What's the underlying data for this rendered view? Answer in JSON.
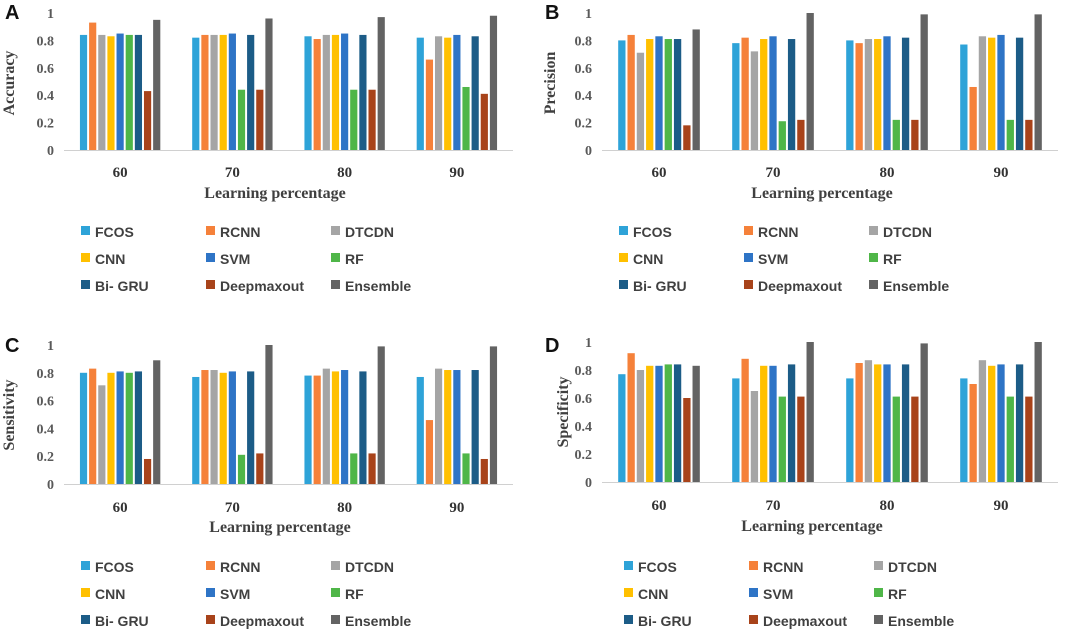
{
  "figure": {
    "panel_letters": [
      "A",
      "B",
      "C",
      "D"
    ]
  },
  "chart_data": [
    {
      "type": "bar",
      "panel": "A",
      "xlabel": "Learning percentage",
      "ylabel": "Accuracy",
      "ylim": [
        0,
        1
      ],
      "yticks": [
        "0",
        "0.2",
        "0.4",
        "0.6",
        "0.8",
        "1"
      ],
      "categories": [
        "60",
        "70",
        "80",
        "90"
      ],
      "series": [
        {
          "name": "FCOS",
          "values": [
            0.84,
            0.82,
            0.83,
            0.82
          ]
        },
        {
          "name": "RCNN",
          "values": [
            0.93,
            0.84,
            0.81,
            0.66
          ]
        },
        {
          "name": "DTCDN",
          "values": [
            0.84,
            0.84,
            0.84,
            0.83
          ]
        },
        {
          "name": "CNN",
          "values": [
            0.83,
            0.84,
            0.84,
            0.82
          ]
        },
        {
          "name": "SVM",
          "values": [
            0.85,
            0.85,
            0.85,
            0.84
          ]
        },
        {
          "name": "RF",
          "values": [
            0.84,
            0.44,
            0.44,
            0.46
          ]
        },
        {
          "name": "Bi- GRU",
          "values": [
            0.84,
            0.84,
            0.84,
            0.83
          ]
        },
        {
          "name": "Deepmaxout",
          "values": [
            0.43,
            0.44,
            0.44,
            0.41
          ]
        },
        {
          "name": "Ensemble",
          "values": [
            0.95,
            0.96,
            0.97,
            0.98
          ]
        }
      ]
    },
    {
      "type": "bar",
      "panel": "B",
      "xlabel": "Learning percentage",
      "ylabel": "Precision",
      "ylim": [
        0,
        1
      ],
      "yticks": [
        "0",
        "0.2",
        "0.4",
        "0.6",
        "0.8",
        "1"
      ],
      "categories": [
        "60",
        "70",
        "80",
        "90"
      ],
      "series": [
        {
          "name": "FCOS",
          "values": [
            0.8,
            0.78,
            0.8,
            0.77
          ]
        },
        {
          "name": "RCNN",
          "values": [
            0.84,
            0.82,
            0.78,
            0.46
          ]
        },
        {
          "name": "DTCDN",
          "values": [
            0.71,
            0.72,
            0.81,
            0.83
          ]
        },
        {
          "name": "CNN",
          "values": [
            0.81,
            0.81,
            0.81,
            0.82
          ]
        },
        {
          "name": "SVM",
          "values": [
            0.83,
            0.83,
            0.83,
            0.84
          ]
        },
        {
          "name": "RF",
          "values": [
            0.81,
            0.21,
            0.22,
            0.22
          ]
        },
        {
          "name": "Bi- GRU",
          "values": [
            0.81,
            0.81,
            0.82,
            0.82
          ]
        },
        {
          "name": "Deepmaxout",
          "values": [
            0.18,
            0.22,
            0.22,
            0.22
          ]
        },
        {
          "name": "Ensemble",
          "values": [
            0.88,
            1.0,
            0.99,
            0.99
          ]
        }
      ]
    },
    {
      "type": "bar",
      "panel": "C",
      "xlabel": "Learning percentage",
      "ylabel": "Sensitivity",
      "ylim": [
        0,
        1
      ],
      "yticks": [
        "0",
        "0.2",
        "0.4",
        "0.6",
        "0.8",
        "1"
      ],
      "categories": [
        "60",
        "70",
        "80",
        "90"
      ],
      "series": [
        {
          "name": "FCOS",
          "values": [
            0.8,
            0.77,
            0.78,
            0.77
          ]
        },
        {
          "name": "RCNN",
          "values": [
            0.83,
            0.82,
            0.78,
            0.46
          ]
        },
        {
          "name": "DTCDN",
          "values": [
            0.71,
            0.82,
            0.83,
            0.83
          ]
        },
        {
          "name": "CNN",
          "values": [
            0.8,
            0.8,
            0.81,
            0.82
          ]
        },
        {
          "name": "SVM",
          "values": [
            0.81,
            0.81,
            0.82,
            0.82
          ]
        },
        {
          "name": "RF",
          "values": [
            0.8,
            0.21,
            0.22,
            0.22
          ]
        },
        {
          "name": "Bi- GRU",
          "values": [
            0.81,
            0.81,
            0.81,
            0.82
          ]
        },
        {
          "name": "Deepmaxout",
          "values": [
            0.18,
            0.22,
            0.22,
            0.18
          ]
        },
        {
          "name": "Ensemble",
          "values": [
            0.89,
            1.0,
            0.99,
            0.99
          ]
        }
      ]
    },
    {
      "type": "bar",
      "panel": "D",
      "xlabel": "Learning percentage",
      "ylabel": "Specificity",
      "ylim": [
        0,
        1
      ],
      "yticks": [
        "0",
        "0.2",
        "0.4",
        "0.6",
        "0.8",
        "1"
      ],
      "categories": [
        "60",
        "70",
        "80",
        "90"
      ],
      "series": [
        {
          "name": "FCOS",
          "values": [
            0.77,
            0.74,
            0.74,
            0.74
          ]
        },
        {
          "name": "RCNN",
          "values": [
            0.92,
            0.88,
            0.85,
            0.7
          ]
        },
        {
          "name": "DTCDN",
          "values": [
            0.8,
            0.65,
            0.87,
            0.87
          ]
        },
        {
          "name": "CNN",
          "values": [
            0.83,
            0.83,
            0.84,
            0.83
          ]
        },
        {
          "name": "SVM",
          "values": [
            0.83,
            0.83,
            0.84,
            0.84
          ]
        },
        {
          "name": "RF",
          "values": [
            0.84,
            0.61,
            0.61,
            0.61
          ]
        },
        {
          "name": "Bi- GRU",
          "values": [
            0.84,
            0.84,
            0.84,
            0.84
          ]
        },
        {
          "name": "Deepmaxout",
          "values": [
            0.6,
            0.61,
            0.61,
            0.61
          ]
        },
        {
          "name": "Ensemble",
          "values": [
            0.83,
            1.0,
            0.99,
            1.0
          ]
        }
      ]
    }
  ],
  "legend": {
    "placement": "below each chart, 3 columns",
    "items": [
      {
        "label": "FCOS",
        "color": "#2ea3d8"
      },
      {
        "label": "RCNN",
        "color": "#f5813a"
      },
      {
        "label": "DTCDN",
        "color": "#a5a5a5"
      },
      {
        "label": "CNN",
        "color": "#ffc000"
      },
      {
        "label": "SVM",
        "color": "#2e74c6"
      },
      {
        "label": "RF",
        "color": "#4fb648"
      },
      {
        "label": "Bi- GRU",
        "color": "#1c5c87"
      },
      {
        "label": "Deepmaxout",
        "color": "#a8431a"
      },
      {
        "label": "Ensemble",
        "color": "#636363"
      }
    ]
  }
}
